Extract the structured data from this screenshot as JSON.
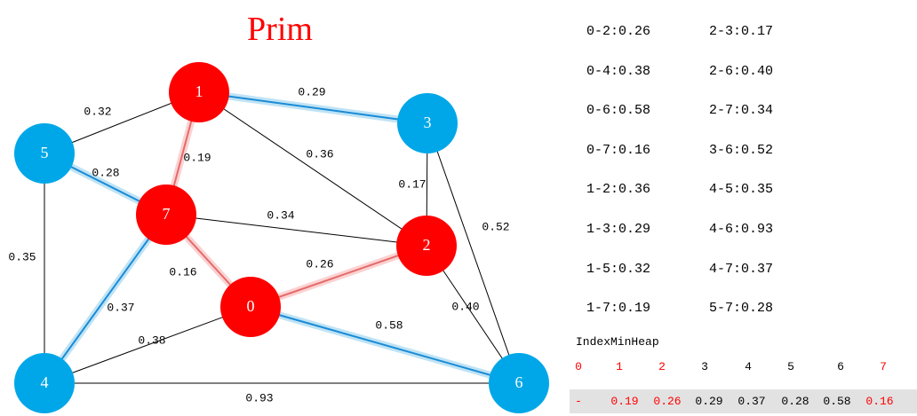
{
  "title": "Prim",
  "colors": {
    "in_tree": "#ff0000",
    "out_tree": "#00a7e8",
    "mst_red_edge": "#f2a3a3",
    "mst_blue_edge": "#1a8bd6",
    "heap_red_text": "#ff0000",
    "heap_bar": "#e2e2e2"
  },
  "nodes": [
    {
      "id": "0",
      "label": "0",
      "state": "in_tree"
    },
    {
      "id": "1",
      "label": "1",
      "state": "in_tree"
    },
    {
      "id": "2",
      "label": "2",
      "state": "in_tree"
    },
    {
      "id": "3",
      "label": "3",
      "state": "out_tree"
    },
    {
      "id": "4",
      "label": "4",
      "state": "out_tree"
    },
    {
      "id": "5",
      "label": "5",
      "state": "out_tree"
    },
    {
      "id": "6",
      "label": "6",
      "state": "out_tree"
    },
    {
      "id": "7",
      "label": "7",
      "state": "in_tree"
    }
  ],
  "edges": [
    {
      "from": "0",
      "to": "2",
      "weight": "0.26",
      "style": "mst_red"
    },
    {
      "from": "0",
      "to": "4",
      "weight": "0.38",
      "style": "plain"
    },
    {
      "from": "0",
      "to": "6",
      "weight": "0.58",
      "style": "mst_blue"
    },
    {
      "from": "0",
      "to": "7",
      "weight": "0.16",
      "style": "mst_red"
    },
    {
      "from": "1",
      "to": "2",
      "weight": "0.36",
      "style": "plain"
    },
    {
      "from": "1",
      "to": "3",
      "weight": "0.29",
      "style": "mst_blue"
    },
    {
      "from": "1",
      "to": "5",
      "weight": "0.32",
      "style": "plain"
    },
    {
      "from": "1",
      "to": "7",
      "weight": "0.19",
      "style": "mst_red"
    },
    {
      "from": "2",
      "to": "3",
      "weight": "0.17",
      "style": "plain"
    },
    {
      "from": "2",
      "to": "6",
      "weight": "0.40",
      "style": "plain"
    },
    {
      "from": "2",
      "to": "7",
      "weight": "0.34",
      "style": "plain"
    },
    {
      "from": "3",
      "to": "6",
      "weight": "0.52",
      "style": "plain"
    },
    {
      "from": "4",
      "to": "5",
      "weight": "0.35",
      "style": "plain"
    },
    {
      "from": "4",
      "to": "6",
      "weight": "0.93",
      "style": "plain"
    },
    {
      "from": "4",
      "to": "7",
      "weight": "0.37",
      "style": "mst_blue"
    },
    {
      "from": "5",
      "to": "7",
      "weight": "0.28",
      "style": "mst_blue"
    }
  ],
  "edge_list": [
    "0-2:0.26",
    "2-3:0.17",
    "0-4:0.38",
    "2-6:0.40",
    "0-6:0.58",
    "2-7:0.34",
    "0-7:0.16",
    "3-6:0.52",
    "1-2:0.36",
    "4-5:0.35",
    "1-3:0.29",
    "4-6:0.93",
    "1-5:0.32",
    "4-7:0.37",
    "1-7:0.19",
    "5-7:0.28"
  ],
  "heap": {
    "title": "IndexMinHeap",
    "indices": [
      {
        "label": "0",
        "red": true
      },
      {
        "label": "1",
        "red": true
      },
      {
        "label": "2",
        "red": true
      },
      {
        "label": "3",
        "red": false
      },
      {
        "label": "4",
        "red": false
      },
      {
        "label": "5",
        "red": false
      },
      {
        "label": "6",
        "red": false
      },
      {
        "label": "7",
        "red": true
      }
    ],
    "values": [
      {
        "label": "-",
        "red": true
      },
      {
        "label": "0.19",
        "red": true
      },
      {
        "label": "0.26",
        "red": true
      },
      {
        "label": "0.29",
        "red": false
      },
      {
        "label": "0.37",
        "red": false
      },
      {
        "label": "0.28",
        "red": false
      },
      {
        "label": "0.58",
        "red": false
      },
      {
        "label": "0.16",
        "red": true
      }
    ]
  }
}
